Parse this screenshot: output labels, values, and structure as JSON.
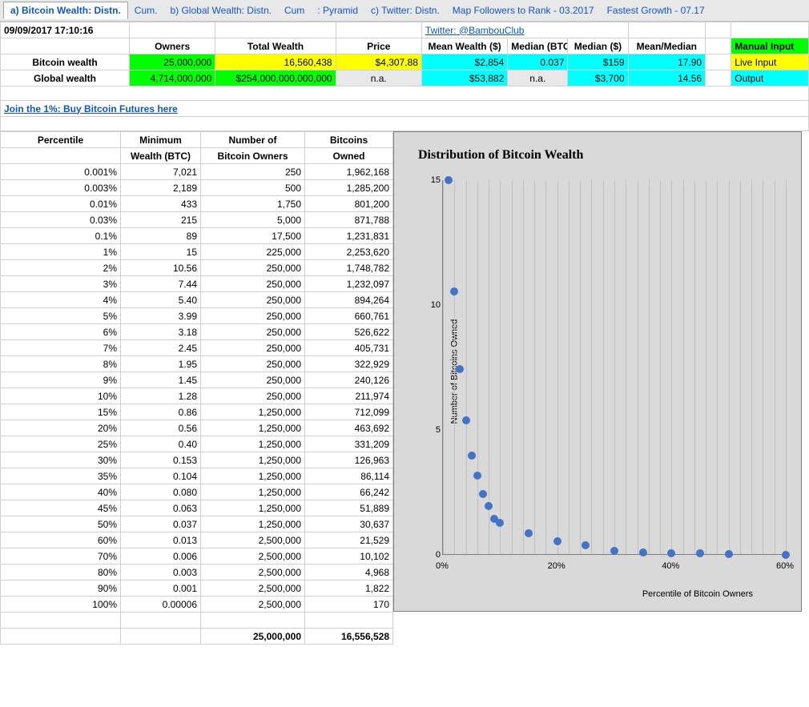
{
  "tabs": [
    {
      "label": "a) Bitcoin Wealth: Distn.",
      "active": true
    },
    {
      "label": "Cum.",
      "active": false
    },
    {
      "label": "b) Global Wealth: Distn.",
      "active": false
    },
    {
      "label": "Cum",
      "active": false
    },
    {
      "label": ": Pyramid",
      "active": false
    },
    {
      "label": "c) Twitter: Distn.",
      "active": false
    },
    {
      "label": "Map Followers to Rank - 03.2017",
      "active": false
    },
    {
      "label": "Fastest Growth - 07.17",
      "active": false
    }
  ],
  "timestamp": "09/09/2017 17:10:16",
  "twitter_link": "Twitter: @BambouClub",
  "summary": {
    "headers": {
      "owners": "Owners",
      "total_wealth": "Total Wealth",
      "price": "Price",
      "mean_wealth": "Mean Wealth ($)",
      "median_btc": "Median (BTC)",
      "median_usd": "Median ($)",
      "mean_median": "Mean/Median"
    },
    "rows": [
      {
        "label": "Bitcoin wealth",
        "owners": "25,000,000",
        "total_wealth": "16,560,438",
        "price": "$4,307.88",
        "mean": "$2,854",
        "median_btc": "0.037",
        "median_usd": "$159",
        "mm": "17.90"
      },
      {
        "label": "Global wealth",
        "owners": "4,714,000,000",
        "total_wealth": "$254,000,000,000,000",
        "price": "n.a.",
        "mean": "$53,882",
        "median_btc": "n.a.",
        "median_usd": "$3,700",
        "mm": "14.56"
      }
    ],
    "legend": {
      "manual": "Manual Input",
      "live": "Live Input",
      "output": "Output"
    }
  },
  "futures_link": "Join the 1%: Buy Bitcoin Futures here",
  "colors": {
    "green": "#00ff00",
    "yellow": "#ffff00",
    "cyan": "#00ffff",
    "gray": "#e8e8e8",
    "chart_bg": "#d9d9d9",
    "point": "#4472c4",
    "link": "#1155cc"
  },
  "dist_table": {
    "headers": {
      "percentile": "Percentile",
      "min_wealth1": "Minimum",
      "min_wealth2": "Wealth (BTC)",
      "num_owners1": "Number of",
      "num_owners2": "Bitcoin Owners",
      "btc_owned1": "Bitcoins",
      "btc_owned2": "Owned"
    },
    "rows": [
      {
        "p": "0.001%",
        "min": "7,021",
        "owners": "250",
        "btc": "1,962,168"
      },
      {
        "p": "0.003%",
        "min": "2,189",
        "owners": "500",
        "btc": "1,285,200"
      },
      {
        "p": "0.01%",
        "min": "433",
        "owners": "1,750",
        "btc": "801,200"
      },
      {
        "p": "0.03%",
        "min": "215",
        "owners": "5,000",
        "btc": "871,788"
      },
      {
        "p": "0.1%",
        "min": "89",
        "owners": "17,500",
        "btc": "1,231,831"
      },
      {
        "p": "1%",
        "min": "15",
        "owners": "225,000",
        "btc": "2,253,620"
      },
      {
        "p": "2%",
        "min": "10.56",
        "owners": "250,000",
        "btc": "1,748,782"
      },
      {
        "p": "3%",
        "min": "7.44",
        "owners": "250,000",
        "btc": "1,232,097"
      },
      {
        "p": "4%",
        "min": "5.40",
        "owners": "250,000",
        "btc": "894,264"
      },
      {
        "p": "5%",
        "min": "3.99",
        "owners": "250,000",
        "btc": "660,761"
      },
      {
        "p": "6%",
        "min": "3.18",
        "owners": "250,000",
        "btc": "526,622"
      },
      {
        "p": "7%",
        "min": "2.45",
        "owners": "250,000",
        "btc": "405,731"
      },
      {
        "p": "8%",
        "min": "1.95",
        "owners": "250,000",
        "btc": "322,929"
      },
      {
        "p": "9%",
        "min": "1.45",
        "owners": "250,000",
        "btc": "240,126"
      },
      {
        "p": "10%",
        "min": "1.28",
        "owners": "250,000",
        "btc": "211,974"
      },
      {
        "p": "15%",
        "min": "0.86",
        "owners": "1,250,000",
        "btc": "712,099"
      },
      {
        "p": "20%",
        "min": "0.56",
        "owners": "1,250,000",
        "btc": "463,692"
      },
      {
        "p": "25%",
        "min": "0.40",
        "owners": "1,250,000",
        "btc": "331,209"
      },
      {
        "p": "30%",
        "min": "0.153",
        "owners": "1,250,000",
        "btc": "126,963"
      },
      {
        "p": "35%",
        "min": "0.104",
        "owners": "1,250,000",
        "btc": "86,114"
      },
      {
        "p": "40%",
        "min": "0.080",
        "owners": "1,250,000",
        "btc": "66,242"
      },
      {
        "p": "45%",
        "min": "0.063",
        "owners": "1,250,000",
        "btc": "51,889"
      },
      {
        "p": "50%",
        "min": "0.037",
        "owners": "1,250,000",
        "btc": "30,637"
      },
      {
        "p": "60%",
        "min": "0.013",
        "owners": "2,500,000",
        "btc": "21,529"
      },
      {
        "p": "70%",
        "min": "0.006",
        "owners": "2,500,000",
        "btc": "10,102"
      },
      {
        "p": "80%",
        "min": "0.003",
        "owners": "2,500,000",
        "btc": "4,968"
      },
      {
        "p": "90%",
        "min": "0.001",
        "owners": "2,500,000",
        "btc": "1,822"
      },
      {
        "p": "100%",
        "min": "0.00006",
        "owners": "2,500,000",
        "btc": "170"
      }
    ],
    "totals": {
      "owners": "25,000,000",
      "btc": "16,556,528"
    }
  },
  "chart": {
    "title": "Distribution of Bitcoin Wealth",
    "ylabel": "Number of Bitcoins Owned",
    "xlabel": "Percentile of Bitcoin Owners",
    "xlim": [
      0,
      60
    ],
    "ylim": [
      0,
      15
    ],
    "yticks": [
      0,
      5,
      10,
      15
    ],
    "xticks": [
      {
        "v": 0,
        "l": "0%"
      },
      {
        "v": 20,
        "l": "20%"
      },
      {
        "v": 40,
        "l": "40%"
      },
      {
        "v": 60,
        "l": "60%"
      }
    ],
    "minor_x_step": 2,
    "point_color": "#4472c4",
    "point_size": 10,
    "points": [
      {
        "x": 1,
        "y": 15
      },
      {
        "x": 2,
        "y": 10.56
      },
      {
        "x": 3,
        "y": 7.44
      },
      {
        "x": 4,
        "y": 5.4
      },
      {
        "x": 5,
        "y": 3.99
      },
      {
        "x": 6,
        "y": 3.18
      },
      {
        "x": 7,
        "y": 2.45
      },
      {
        "x": 8,
        "y": 1.95
      },
      {
        "x": 9,
        "y": 1.45
      },
      {
        "x": 10,
        "y": 1.28
      },
      {
        "x": 15,
        "y": 0.86
      },
      {
        "x": 20,
        "y": 0.56
      },
      {
        "x": 25,
        "y": 0.4
      },
      {
        "x": 30,
        "y": 0.153
      },
      {
        "x": 35,
        "y": 0.104
      },
      {
        "x": 40,
        "y": 0.08
      },
      {
        "x": 45,
        "y": 0.063
      },
      {
        "x": 50,
        "y": 0.037
      },
      {
        "x": 60,
        "y": 0.013
      }
    ]
  }
}
